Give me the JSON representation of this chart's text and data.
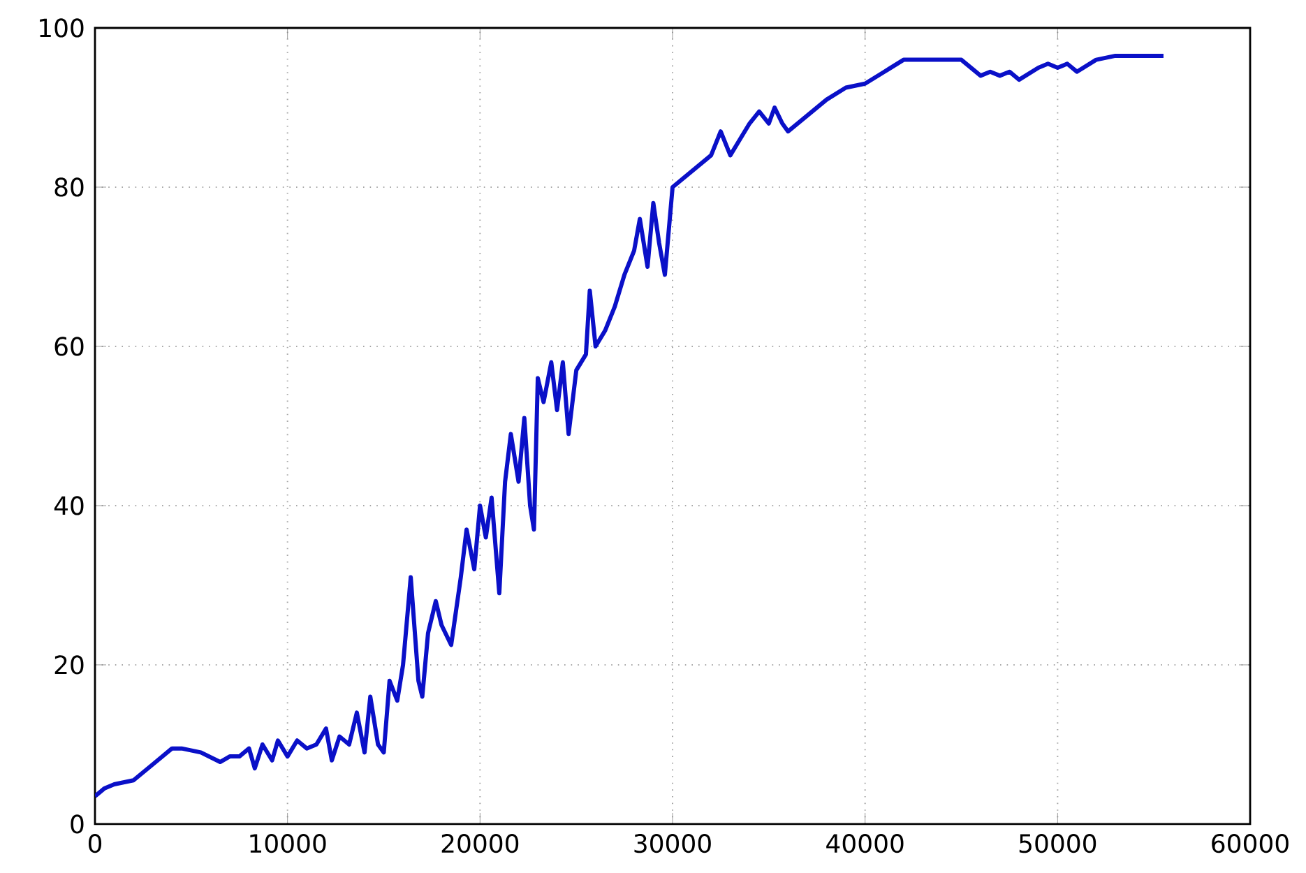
{
  "chart_data": {
    "type": "line",
    "x": [
      0,
      500,
      1000,
      2000,
      3000,
      4000,
      4500,
      5500,
      6500,
      7000,
      7500,
      8000,
      8300,
      8700,
      9200,
      9500,
      10000,
      10500,
      11000,
      11500,
      12000,
      12300,
      12700,
      13200,
      13600,
      14000,
      14300,
      14700,
      15000,
      15300,
      15700,
      16000,
      16400,
      16800,
      17000,
      17300,
      17700,
      18000,
      18500,
      19000,
      19300,
      19700,
      20000,
      20300,
      20600,
      21000,
      21300,
      21600,
      22000,
      22300,
      22600,
      22800,
      23000,
      23300,
      23700,
      24000,
      24300,
      24600,
      25000,
      25500,
      25700,
      26000,
      26500,
      27000,
      27500,
      28000,
      28300,
      28700,
      29000,
      29300,
      29600,
      30000,
      30500,
      31000,
      31500,
      32000,
      32500,
      33000,
      33500,
      34000,
      34500,
      35000,
      35300,
      35700,
      36000,
      37000,
      38000,
      39000,
      40000,
      41000,
      42000,
      45000,
      46000,
      46500,
      47000,
      47500,
      48000,
      49000,
      49500,
      50000,
      50500,
      51000,
      52000,
      53000,
      55500
    ],
    "series": [
      {
        "color": "#0a10c8",
        "values": [
          3.5,
          4.5,
          5,
          5.5,
          7.5,
          9.5,
          9.5,
          9,
          7.8,
          8.5,
          8.5,
          9.5,
          7,
          10,
          8,
          10.5,
          8.5,
          10.5,
          9.5,
          10,
          12,
          8,
          11,
          10,
          14,
          9,
          16,
          10,
          9,
          18,
          15.5,
          20,
          31,
          18,
          16,
          24,
          28,
          25,
          22.5,
          31,
          37,
          32,
          40,
          36,
          41,
          29,
          43,
          49,
          43,
          51,
          40,
          37,
          56,
          53,
          58,
          52,
          58,
          49,
          57,
          59,
          67,
          60,
          62,
          65,
          69,
          72,
          76,
          70,
          78,
          73,
          69,
          80,
          81,
          82,
          83,
          84,
          87,
          84,
          86,
          88,
          89.5,
          88,
          90,
          88,
          87,
          89,
          91,
          92.5,
          93,
          94.5,
          96,
          96,
          94,
          94.5,
          94,
          94.5,
          93.5,
          95,
          95.5,
          95,
          95.5,
          94.5,
          96,
          96.5,
          96.5
        ]
      }
    ],
    "xlim": [
      0,
      60000
    ],
    "ylim": [
      0,
      100
    ],
    "xticks": [
      0,
      10000,
      20000,
      30000,
      40000,
      50000,
      60000
    ],
    "yticks": [
      0,
      20,
      40,
      60,
      80,
      100
    ],
    "grid": true,
    "marker": "none",
    "line_style": "solid"
  }
}
